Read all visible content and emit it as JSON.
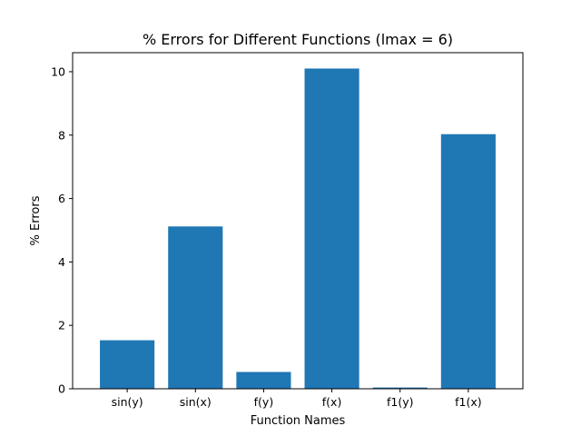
{
  "chart_data": {
    "type": "bar",
    "title": "% Errors for Different Functions (lmax = 6)",
    "xlabel": "Function Names",
    "ylabel": "% Errors",
    "categories": [
      "sin(y)",
      "sin(x)",
      "f(y)",
      "f(x)",
      "f1(y)",
      "f1(x)"
    ],
    "values": [
      1.53,
      5.12,
      0.53,
      10.1,
      0.04,
      8.03
    ],
    "ylim": [
      0,
      10.6
    ],
    "yticks": [
      "0",
      "2",
      "4",
      "6",
      "8",
      "10"
    ],
    "grid": false,
    "bar_color": "#1f77b4"
  }
}
